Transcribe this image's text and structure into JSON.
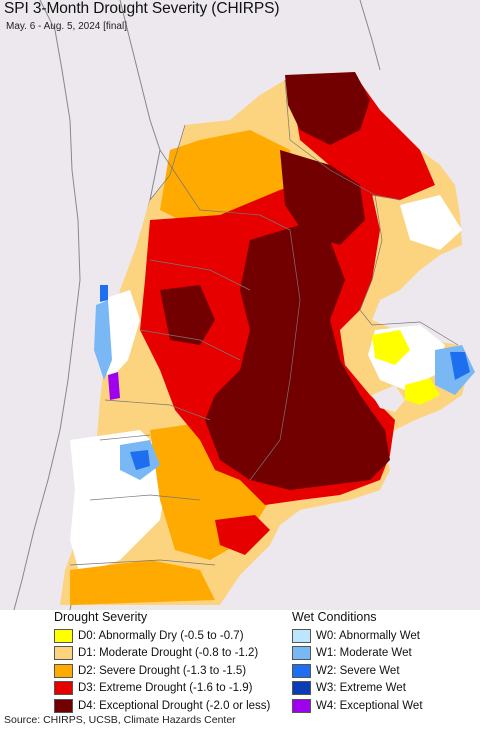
{
  "header": {
    "title": "SPI 3-Month Drought Severity (CHIRPS)",
    "subtitle": "May. 6 - Aug. 5, 2024 [final]"
  },
  "legend_drought": {
    "heading": "Drought Severity",
    "items": [
      {
        "label": "D0: Abnormally Dry (-0.5 to -0.7)",
        "color": "#ffff00"
      },
      {
        "label": "D1: Moderate Drought (-0.8 to -1.2)",
        "color": "#fcd37f"
      },
      {
        "label": "D2: Severe Drought (-1.3 to -1.5)",
        "color": "#ffaa00"
      },
      {
        "label": "D3: Extreme Drought (-1.6 to -1.9)",
        "color": "#e60000"
      },
      {
        "label": "D4: Exceptional Drought (-2.0 or less)",
        "color": "#730000"
      }
    ]
  },
  "legend_wet": {
    "heading": "Wet Conditions",
    "items": [
      {
        "label": "W0: Abnormally Wet",
        "color": "#bde5fb"
      },
      {
        "label": "W1: Moderate Wet",
        "color": "#7ab8f5"
      },
      {
        "label": "W2: Severe Wet",
        "color": "#1e6ef0"
      },
      {
        "label": "W3: Extreme Wet",
        "color": "#0a3cb4"
      },
      {
        "label": "W4: Exceptional Wet",
        "color": "#a000f0"
      }
    ]
  },
  "footer": {
    "source": "Source: CHIRPS, UCSB, Climate Hazards Center"
  },
  "map": {
    "background_color": "#ece8ee",
    "boundary_color": "#777777"
  }
}
